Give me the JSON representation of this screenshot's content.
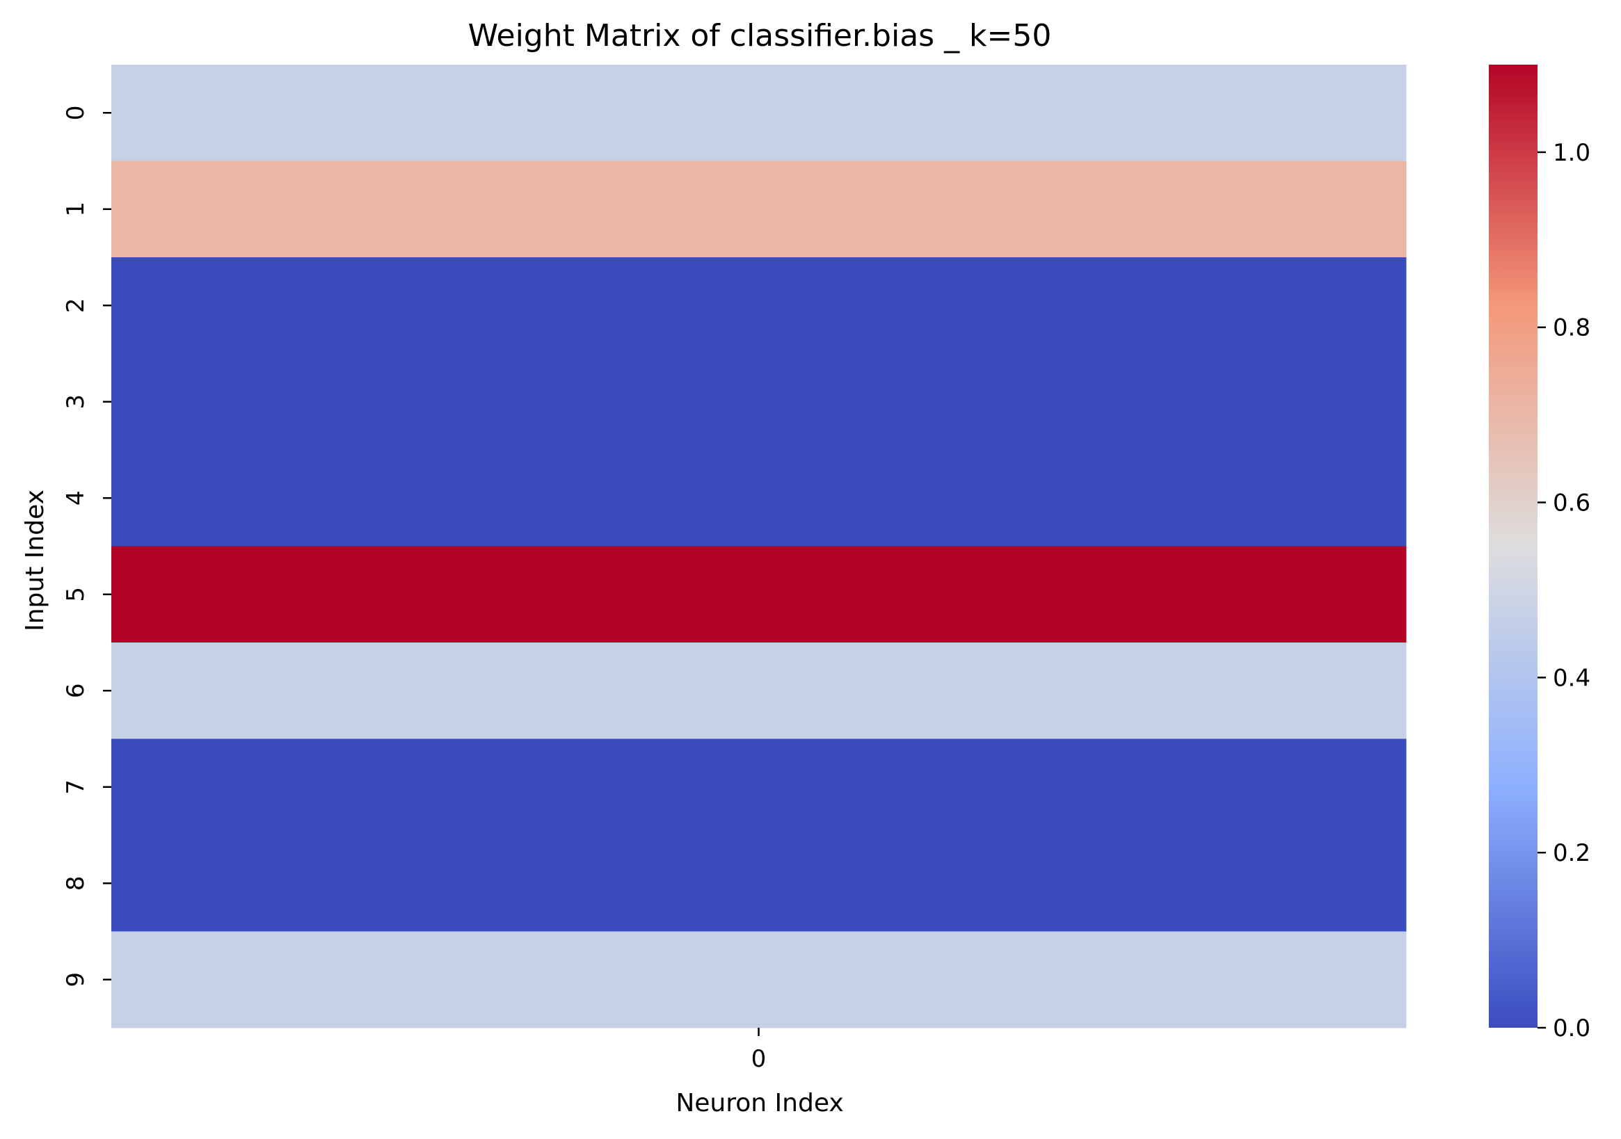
{
  "chart_data": {
    "type": "heatmap",
    "title": "Weight Matrix of classifier.bias _ k=50",
    "xlabel": "Neuron Index",
    "ylabel": "Input Index",
    "x_categories": [
      "0"
    ],
    "y_categories": [
      "0",
      "1",
      "2",
      "3",
      "4",
      "5",
      "6",
      "7",
      "8",
      "9"
    ],
    "values": [
      [
        0.47
      ],
      [
        0.7
      ],
      [
        0.0
      ],
      [
        0.0
      ],
      [
        0.0
      ],
      [
        1.1
      ],
      [
        0.47
      ],
      [
        0.0
      ],
      [
        0.0
      ],
      [
        0.47
      ]
    ],
    "colormap": "coolwarm",
    "colorbar": {
      "range": [
        0.0,
        1.1
      ],
      "ticks": [
        0.0,
        0.2,
        0.4,
        0.6,
        0.8,
        1.0
      ],
      "tick_labels": [
        "0.0",
        "0.2",
        "0.4",
        "0.6",
        "0.8",
        "1.0"
      ]
    },
    "grid": false,
    "legend": "none"
  }
}
